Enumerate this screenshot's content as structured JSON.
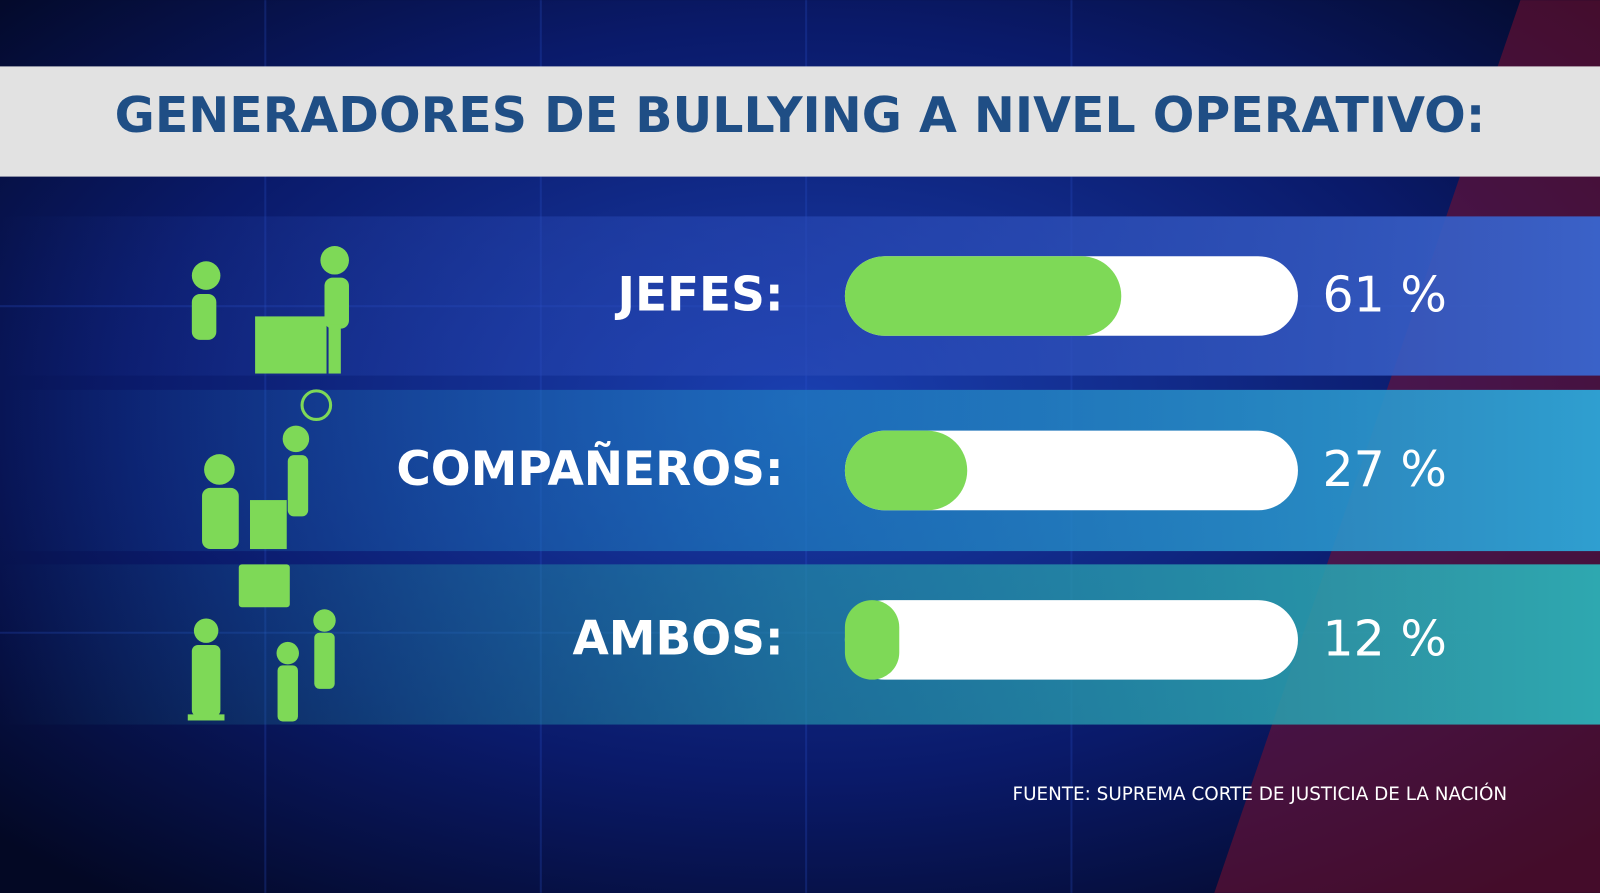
{
  "chart_data": {
    "type": "bar",
    "title": "GENERADORES DE BULLYING A NIVEL OPERATIVO:",
    "categories": [
      "JEFES:",
      "COMPAÑEROS:",
      "AMBOS:"
    ],
    "values": [
      61,
      27,
      12
    ],
    "value_labels": [
      "61 %",
      "27 %",
      "12 %"
    ],
    "xlim": [
      0,
      100
    ],
    "color": "#7ed957",
    "source": "FUENTE: SUPREMA CORTE DE JUSTICIA DE LA NACIÓN"
  }
}
